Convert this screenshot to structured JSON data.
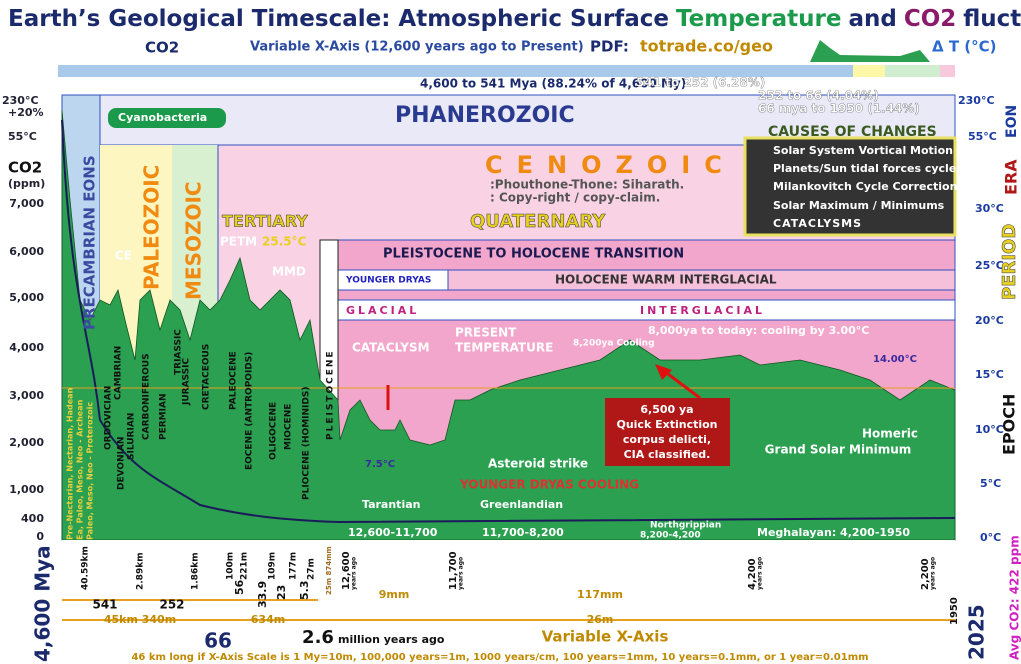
{
  "title": {
    "part1": "Earth’s Geological Timescale: Atmospheric Surface",
    "temperature": "Temperature",
    "and": "and",
    "co2": "CO2",
    "part2": "fluctuations"
  },
  "header": {
    "co2_label": "CO2",
    "xaxis": "Variable X-Axis (12,600 years ago to Present)",
    "pdf": "PDF:",
    "url": "totrade.co/geo",
    "delta_t": "Δ T (°C)"
  },
  "spans": [
    "4,600 to 541 Mya (88.24% of 4,600 My)",
    "541 to 252  (6.28%)",
    "252 to 66 (4.04%)",
    "66 mya to 1950 (1.44%)"
  ],
  "eons": {
    "precambrian": "PRECAMBRIAN EONS",
    "phanerozoic": "PHANEROZOIC",
    "cyanobacteria": "Cyanobacteria",
    "precambrian_sub": [
      "Pre-Nectarian, Nectarian, Hadean",
      "Ea, Paleo, Meso, Neo - Archean",
      "Paleo, Meso, Neo - Proterozoic"
    ]
  },
  "eras": {
    "paleozoic": "PALEOZOIC",
    "mesozoic": "MESOZOIC",
    "cenozoic": "CENOZOIC",
    "note": [
      ":Phouthone-Thone: Siharath.",
      ": Copy-right / copy-claim."
    ],
    "ce": "CE"
  },
  "periods": {
    "tertiary": "TERTIARY",
    "quaternary": "QUATERNARY",
    "names": [
      "CAMBRIAN",
      "ORDOVICIAN",
      "SILURIAN",
      "DEVONIAN",
      "CARBONIFEROUS",
      "PERMIAN",
      "TRIASSIC",
      "JURASSIC",
      "CRETACEOUS"
    ]
  },
  "epochs": [
    "PALEOCENE",
    "EOCENE (ANTROPOIDS)",
    "OLIGOCENE",
    "MIOCENE",
    "PLIOCENE (HOMINIDS)",
    "PLEISTOCENE"
  ],
  "events": {
    "petm": "PETM",
    "petm_temp": "25.5°C",
    "mmd": "MMD",
    "transition": "PLEISTOCENE TO HOLOCENE TRANSITION",
    "younger_dryas": "YOUNGER DRYAS",
    "holocene": "HOLOCENE WARM INTERGLACIAL",
    "glacial": "GLACIAL",
    "interglacial": "INTERGLACIAL",
    "present": [
      "PRESENT",
      "TEMPERATURE"
    ],
    "cataclysm": "CATACLYSM",
    "cooling": "8,000ya to today:  cooling by 3.00°C",
    "c8200": "8,200ya Cooling",
    "t14": "14.00°C",
    "t75": "7.5°C",
    "asteroid": "Asteroid strike",
    "ydc": "YOUNGER DRYAS COOLING",
    "quick": [
      "6,500 ya",
      "Quick Extinction",
      "corpus delicti,",
      "CIA classified."
    ],
    "homeric": [
      "Homeric",
      "Grand Solar Minimum"
    ]
  },
  "causes": {
    "title": "CAUSES OF CHANGES",
    "items": [
      "Solar System Vortical Motion",
      "Planets/Sun tidal forces cycles",
      "Milankovitch Cycle Correction",
      "Solar Maximum / Minimums",
      "CATACLYSMS"
    ]
  },
  "left_axis": {
    "top": [
      "230°C",
      "+20%",
      "55°C"
    ],
    "title": [
      "CO2",
      "(ppm)"
    ],
    "ticks": [
      "7,000",
      "6,000",
      "5,000",
      "4,000",
      "3,000",
      "2,000",
      "1,000",
      "400",
      "0"
    ]
  },
  "right_axis": {
    "ticks": [
      "230°C",
      "55°C",
      "30°C",
      "25°C",
      "20°C",
      "15°C",
      "10°C",
      "5°C",
      "0°C"
    ],
    "levels": [
      "EON",
      "ERA",
      "PERIOD",
      "EPOCH"
    ],
    "avg": "Avg CO2: 422 ppm"
  },
  "stages": {
    "tarantian": "Tarantian",
    "greenlandian": "Greenlandian",
    "northgrippian": "Northgrippian",
    "meghalayan": "Meghalayan: 4,200-1950",
    "r1": "12,600-11,700",
    "r2": "11,700-8,200",
    "r3": "8,200-4,200"
  },
  "bottom": {
    "mya": "4,600 Mya",
    "lengths": [
      "40.59km",
      "2.89km",
      "1.86km",
      "100m",
      "221m",
      "109m",
      "177m",
      "27m",
      "25m 874mm"
    ],
    "marks": [
      "541",
      "252",
      "56",
      "33.9",
      "23",
      "5.3"
    ],
    "years": [
      "12,600",
      "11,700",
      "4,200",
      "2,200"
    ],
    "years_ago": "years ago",
    "spans": [
      "45km 340m",
      "634m",
      "9mm",
      "117mm",
      "26m"
    ],
    "y66": "66",
    "y26": "2.6",
    "mya_label": "million years ago",
    "variable": "Variable X-Axis",
    "y1950": "1950",
    "y2025": "2025",
    "scale": "46 km long if X-Axis Scale is 1 My=10m, 100,000 years=1m, 1000 years/cm, 100 years=1mm, 10 years=0.1mm, or 1 year=0.01mm"
  }
}
